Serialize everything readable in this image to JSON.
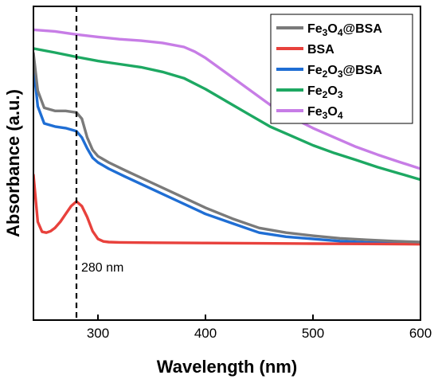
{
  "chart_data": {
    "type": "line",
    "xlabel": "Wavelength (nm)",
    "ylabel": "Absorbance (a.u.)",
    "xlim": [
      240,
      600
    ],
    "ylim": [
      0,
      1
    ],
    "x_ticks": [
      300,
      400,
      500,
      600
    ],
    "y_ticks_shown": false,
    "grid": false,
    "legend_position": "top-right",
    "series": [
      {
        "name": "Fe3O4@BSA",
        "name_main": "Fe",
        "name_sub1": "3",
        "name_mid": "O",
        "name_sub2": "4",
        "name_tail": "@BSA",
        "color": "#7a7a7a",
        "x": [
          240,
          244,
          250,
          260,
          270,
          280,
          285,
          290,
          295,
          300,
          310,
          325,
          350,
          375,
          400,
          425,
          450,
          475,
          500,
          525,
          550,
          575,
          600
        ],
        "y": [
          0.97,
          0.85,
          0.795,
          0.785,
          0.785,
          0.78,
          0.76,
          0.7,
          0.66,
          0.64,
          0.62,
          0.595,
          0.555,
          0.515,
          0.475,
          0.44,
          0.41,
          0.395,
          0.385,
          0.377,
          0.372,
          0.368,
          0.365
        ]
      },
      {
        "name": "BSA",
        "name_main": "BSA",
        "name_sub1": "",
        "name_mid": "",
        "name_sub2": "",
        "name_tail": "",
        "color": "#e8413c",
        "x": [
          240,
          244,
          248,
          252,
          256,
          260,
          265,
          270,
          275,
          280,
          285,
          290,
          295,
          300,
          305,
          310,
          320,
          350,
          400,
          450,
          500,
          550,
          600
        ],
        "y": [
          0.58,
          0.43,
          0.398,
          0.395,
          0.4,
          0.41,
          0.43,
          0.455,
          0.48,
          0.495,
          0.48,
          0.445,
          0.4,
          0.375,
          0.367,
          0.365,
          0.364,
          0.363,
          0.362,
          0.361,
          0.36,
          0.359,
          0.358
        ]
      },
      {
        "name": "Fe2O3@BSA",
        "name_main": "Fe",
        "name_sub1": "2",
        "name_mid": "O",
        "name_sub2": "3",
        "name_tail": "@BSA",
        "color": "#1f6ed4",
        "x": [
          240,
          244,
          250,
          260,
          270,
          280,
          285,
          290,
          295,
          300,
          310,
          325,
          350,
          375,
          400,
          425,
          450,
          475,
          500,
          525,
          550,
          575,
          600
        ],
        "y": [
          0.93,
          0.8,
          0.745,
          0.735,
          0.73,
          0.72,
          0.7,
          0.665,
          0.635,
          0.62,
          0.6,
          0.575,
          0.535,
          0.495,
          0.455,
          0.425,
          0.395,
          0.382,
          0.375,
          0.368,
          0.364,
          0.362,
          0.36
        ]
      },
      {
        "name": "Fe2O3",
        "name_main": "Fe",
        "name_sub1": "2",
        "name_mid": "O",
        "name_sub2": "3",
        "name_tail": "",
        "color": "#1da862",
        "x": [
          240,
          260,
          280,
          300,
          320,
          340,
          360,
          380,
          400,
          420,
          440,
          460,
          480,
          500,
          520,
          540,
          560,
          580,
          600
        ],
        "y": [
          0.985,
          0.972,
          0.958,
          0.945,
          0.935,
          0.925,
          0.91,
          0.89,
          0.855,
          0.815,
          0.775,
          0.735,
          0.705,
          0.675,
          0.65,
          0.628,
          0.605,
          0.585,
          0.565
        ]
      },
      {
        "name": "Fe3O4",
        "name_main": "Fe",
        "name_sub1": "3",
        "name_mid": "O",
        "name_sub2": "4",
        "name_tail": "",
        "color": "#c77de6",
        "x": [
          240,
          260,
          280,
          300,
          320,
          340,
          360,
          380,
          390,
          400,
          420,
          440,
          460,
          480,
          500,
          520,
          540,
          560,
          580,
          600
        ],
        "y": [
          1.045,
          1.04,
          1.03,
          1.022,
          1.015,
          1.01,
          1.003,
          0.99,
          0.975,
          0.955,
          0.905,
          0.855,
          0.805,
          0.765,
          0.73,
          0.7,
          0.67,
          0.645,
          0.622,
          0.6
        ]
      }
    ],
    "annotations": [
      {
        "type": "vline",
        "x": 280,
        "label": "280 nm"
      }
    ]
  }
}
